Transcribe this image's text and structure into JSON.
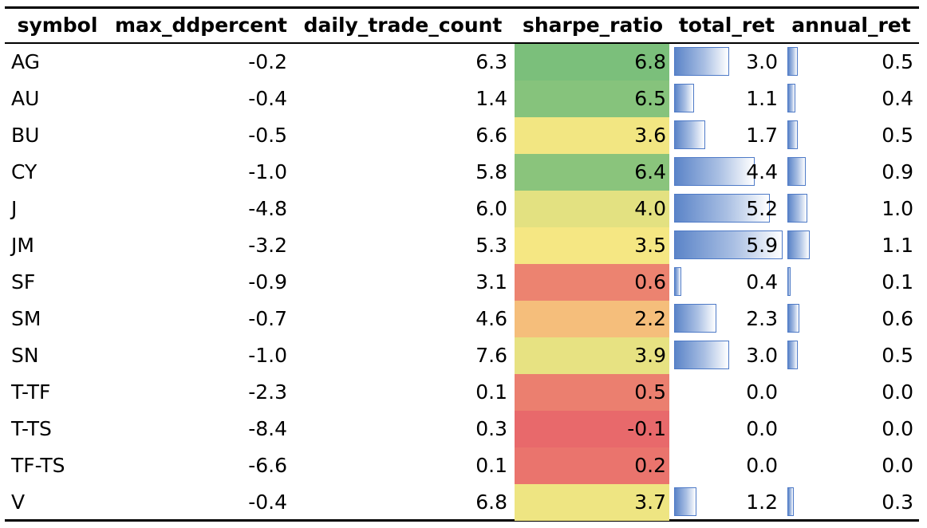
{
  "chart_data": {
    "type": "table",
    "columns": [
      "symbol",
      "max_ddpercent",
      "daily_trade_count",
      "sharpe_ratio",
      "total_ret",
      "annual_ret"
    ],
    "rows": [
      {
        "symbol": "AG",
        "max_ddpercent": "-0.2",
        "daily_trade_count": "6.3",
        "sharpe_ratio": "6.8",
        "total_ret": "3.0",
        "annual_ret": "0.5"
      },
      {
        "symbol": "AU",
        "max_ddpercent": "-0.4",
        "daily_trade_count": "1.4",
        "sharpe_ratio": "6.5",
        "total_ret": "1.1",
        "annual_ret": "0.4"
      },
      {
        "symbol": "BU",
        "max_ddpercent": "-0.5",
        "daily_trade_count": "6.6",
        "sharpe_ratio": "3.6",
        "total_ret": "1.7",
        "annual_ret": "0.5"
      },
      {
        "symbol": "CY",
        "max_ddpercent": "-1.0",
        "daily_trade_count": "5.8",
        "sharpe_ratio": "6.4",
        "total_ret": "4.4",
        "annual_ret": "0.9"
      },
      {
        "symbol": "J",
        "max_ddpercent": "-4.8",
        "daily_trade_count": "6.0",
        "sharpe_ratio": "4.0",
        "total_ret": "5.2",
        "annual_ret": "1.0"
      },
      {
        "symbol": "JM",
        "max_ddpercent": "-3.2",
        "daily_trade_count": "5.3",
        "sharpe_ratio": "3.5",
        "total_ret": "5.9",
        "annual_ret": "1.1"
      },
      {
        "symbol": "SF",
        "max_ddpercent": "-0.9",
        "daily_trade_count": "3.1",
        "sharpe_ratio": "0.6",
        "total_ret": "0.4",
        "annual_ret": "0.1"
      },
      {
        "symbol": "SM",
        "max_ddpercent": "-0.7",
        "daily_trade_count": "4.6",
        "sharpe_ratio": "2.2",
        "total_ret": "2.3",
        "annual_ret": "0.6"
      },
      {
        "symbol": "SN",
        "max_ddpercent": "-1.0",
        "daily_trade_count": "7.6",
        "sharpe_ratio": "3.9",
        "total_ret": "3.0",
        "annual_ret": "0.5"
      },
      {
        "symbol": "T-TF",
        "max_ddpercent": "-2.3",
        "daily_trade_count": "0.1",
        "sharpe_ratio": "0.5",
        "total_ret": "0.0",
        "annual_ret": "0.0"
      },
      {
        "symbol": "T-TS",
        "max_ddpercent": "-8.4",
        "daily_trade_count": "0.3",
        "sharpe_ratio": "-0.1",
        "total_ret": "0.0",
        "annual_ret": "0.0"
      },
      {
        "symbol": "TF-TS",
        "max_ddpercent": "-6.6",
        "daily_trade_count": "0.1",
        "sharpe_ratio": "0.2",
        "total_ret": "0.0",
        "annual_ret": "0.0"
      },
      {
        "symbol": "V",
        "max_ddpercent": "-0.4",
        "daily_trade_count": "6.8",
        "sharpe_ratio": "3.7",
        "total_ret": "1.2",
        "annual_ret": "0.3"
      }
    ],
    "heatmap_column": "sharpe_ratio",
    "heatmap_colors": {
      "low": "#e8696b",
      "mid": "#fbe983",
      "high": "#7bbf7b"
    },
    "databar_columns": [
      "total_ret",
      "annual_ret"
    ],
    "databar_color": "#5b84c8"
  }
}
